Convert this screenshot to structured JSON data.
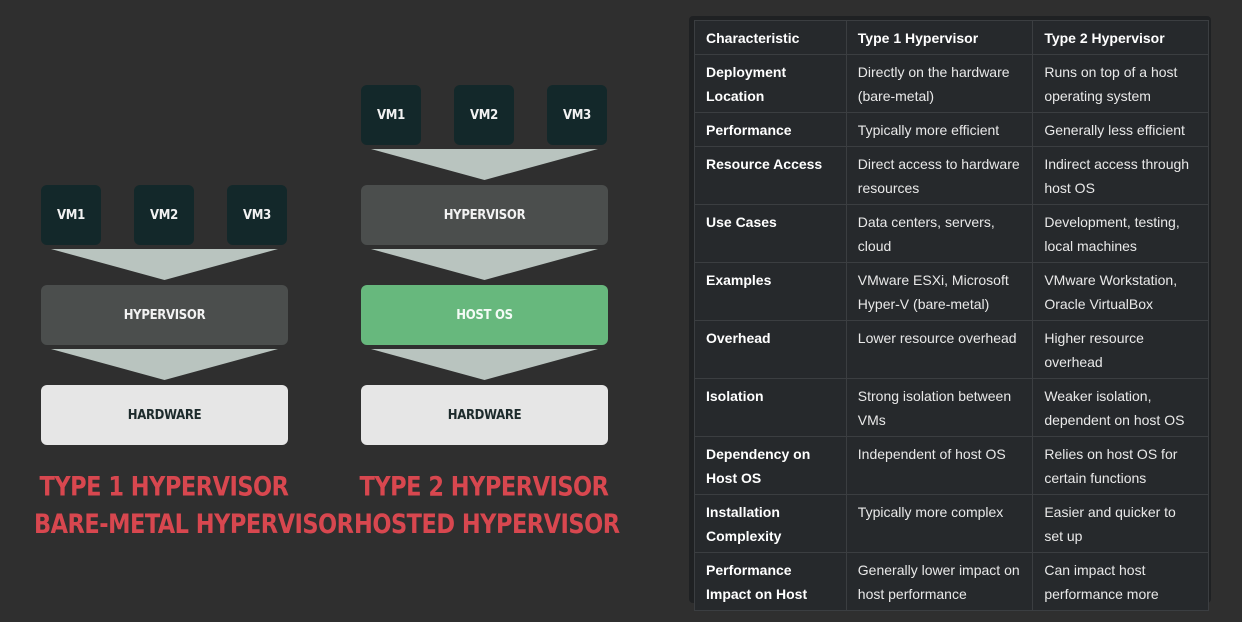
{
  "diagram": {
    "type1": {
      "vms": [
        "VM1",
        "VM2",
        "VM3"
      ],
      "hypervisor": "HYPERVISOR",
      "hardware": "HARDWARE",
      "caption_line1": "TYPE 1 HYPERVISOR",
      "caption_line2": "BARE-METAL HYPERVISOR"
    },
    "type2": {
      "vms": [
        "VM1",
        "VM2",
        "VM3"
      ],
      "hypervisor": "HYPERVISOR",
      "host_os": "HOST OS",
      "hardware": "HARDWARE",
      "caption_line1": "TYPE 2 HYPERVISOR",
      "caption_line2": "HOSTED HYPERVISOR"
    },
    "colors": {
      "vm": "#13282a",
      "hypervisor": "#4b4e4d",
      "host_os": "#67b87d",
      "hardware": "#e6e6e6",
      "arrow": "#b9c4bf",
      "caption": "#d8474f"
    }
  },
  "table": {
    "headers": [
      "Characteristic",
      "Type 1 Hypervisor",
      "Type 2 Hypervisor"
    ],
    "rows": [
      [
        "Deployment Location",
        "Directly on the hardware (bare-metal)",
        "Runs on top of a host operating system"
      ],
      [
        "Performance",
        "Typically more efficient",
        "Generally less efficient"
      ],
      [
        "Resource Access",
        "Direct access to hardware resources",
        "Indirect access through host OS"
      ],
      [
        "Use Cases",
        "Data centers, servers, cloud",
        "Development, testing, local machines"
      ],
      [
        "Examples",
        "VMware ESXi, Microsoft Hyper-V (bare-metal)",
        "VMware Workstation, Oracle VirtualBox"
      ],
      [
        "Overhead",
        "Lower resource overhead",
        "Higher resource overhead"
      ],
      [
        "Isolation",
        "Strong isolation between VMs",
        "Weaker isolation, dependent on host OS"
      ],
      [
        "Dependency on Host OS",
        "Independent of host OS",
        "Relies on host OS for certain functions"
      ],
      [
        "Installation Complexity",
        "Typically more complex",
        "Easier and quicker to set up"
      ],
      [
        "Performance Impact on Host",
        "Generally lower impact on host performance",
        "Can impact host performance more"
      ]
    ]
  }
}
